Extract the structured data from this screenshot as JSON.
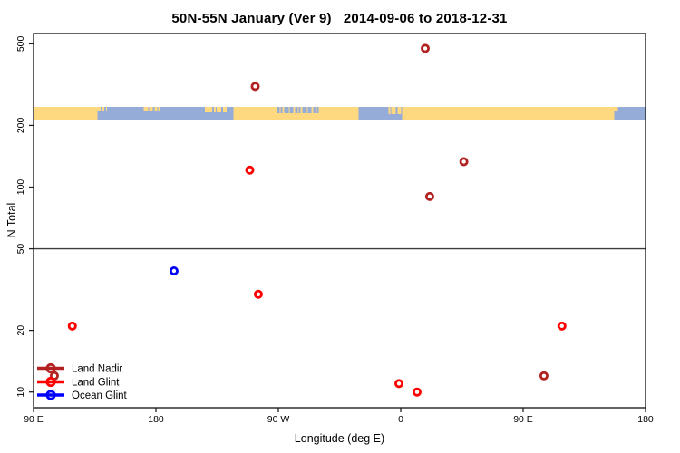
{
  "header": {
    "window_title": "R scatter plot"
  },
  "chart_data": {
    "type": "scatter",
    "title": "50N-55N January (Ver 9)   2014-09-06 to 2018-12-31",
    "xlabel": "Longitude (deg E)",
    "ylabel": "N Total",
    "y_scale": "log10",
    "ylim": [
      8.4,
      560
    ],
    "y_ticks": [
      10,
      20,
      50,
      100,
      200,
      500
    ],
    "x_axis_deg_range": [
      90,
      540
    ],
    "x_ticks": [
      {
        "deg": 90,
        "label": "90 E"
      },
      {
        "deg": 180,
        "label": "180"
      },
      {
        "deg": 270,
        "label": "90 W"
      },
      {
        "deg": 360,
        "label": "0"
      },
      {
        "deg": 450,
        "label": "90 E"
      },
      {
        "deg": 540,
        "label": "180"
      }
    ],
    "reference_hline_n": 50,
    "legend_position": "bottom-left-inside",
    "grid": false,
    "series": [
      {
        "name": "Land Nadir",
        "color": "#B22222",
        "points": [
          {
            "axis_deg": 253,
            "lon_label": "107 W",
            "n": 310
          },
          {
            "axis_deg": 378,
            "lon_label": "18 E",
            "n": 475
          },
          {
            "axis_deg": 406.4,
            "lon_label": "46 E",
            "n": 133
          },
          {
            "axis_deg": 381.3,
            "lon_label": "21 E",
            "n": 90
          },
          {
            "axis_deg": 105.3,
            "lon_label": "105 E",
            "n": 12
          },
          {
            "axis_deg": 465.3,
            "lon_label": "105 E",
            "n": 12
          }
        ]
      },
      {
        "name": "Land Glint",
        "color": "#FF0000",
        "points": [
          {
            "axis_deg": 249,
            "lon_label": "111 W",
            "n": 121
          },
          {
            "axis_deg": 255.3,
            "lon_label": "105 W",
            "n": 30
          },
          {
            "axis_deg": 118.5,
            "lon_label": "118 E",
            "n": 21
          },
          {
            "axis_deg": 478.5,
            "lon_label": "118 E",
            "n": 21
          },
          {
            "axis_deg": 358.7,
            "lon_label": "1 W",
            "n": 11
          },
          {
            "axis_deg": 372,
            "lon_label": "12 E",
            "n": 10
          }
        ]
      },
      {
        "name": "Ocean Glint",
        "color": "#0000FF",
        "points": [
          {
            "axis_deg": 193.3,
            "lon_label": "167 W",
            "n": 39
          }
        ]
      }
    ],
    "coastline_band": {
      "description": "land/ocean strip along 50N-55N latitude",
      "n_center": 220,
      "land_color": "#FFD97F",
      "ocean_color": "#95ABD8",
      "base_segments": [
        {
          "from_deg": 90,
          "to_deg": 137,
          "type": "land"
        },
        {
          "from_deg": 137,
          "to_deg": 237,
          "type": "ocean"
        },
        {
          "from_deg": 237,
          "to_deg": 329,
          "type": "land"
        },
        {
          "from_deg": 329,
          "to_deg": 361,
          "type": "ocean"
        },
        {
          "from_deg": 361,
          "to_deg": 517,
          "type": "land"
        },
        {
          "from_deg": 517,
          "to_deg": 540,
          "type": "ocean"
        }
      ],
      "top_edge_patches": [
        {
          "from_deg": 130,
          "to_deg": 144,
          "type": "land"
        },
        {
          "from_deg": 171,
          "to_deg": 184,
          "type": "land"
        },
        {
          "from_deg": 216,
          "to_deg": 233,
          "type": "land"
        },
        {
          "from_deg": 269,
          "to_deg": 300,
          "type": "ocean"
        },
        {
          "from_deg": 351,
          "to_deg": 361,
          "type": "land"
        },
        {
          "from_deg": 513,
          "to_deg": 521,
          "type": "land"
        }
      ]
    }
  }
}
